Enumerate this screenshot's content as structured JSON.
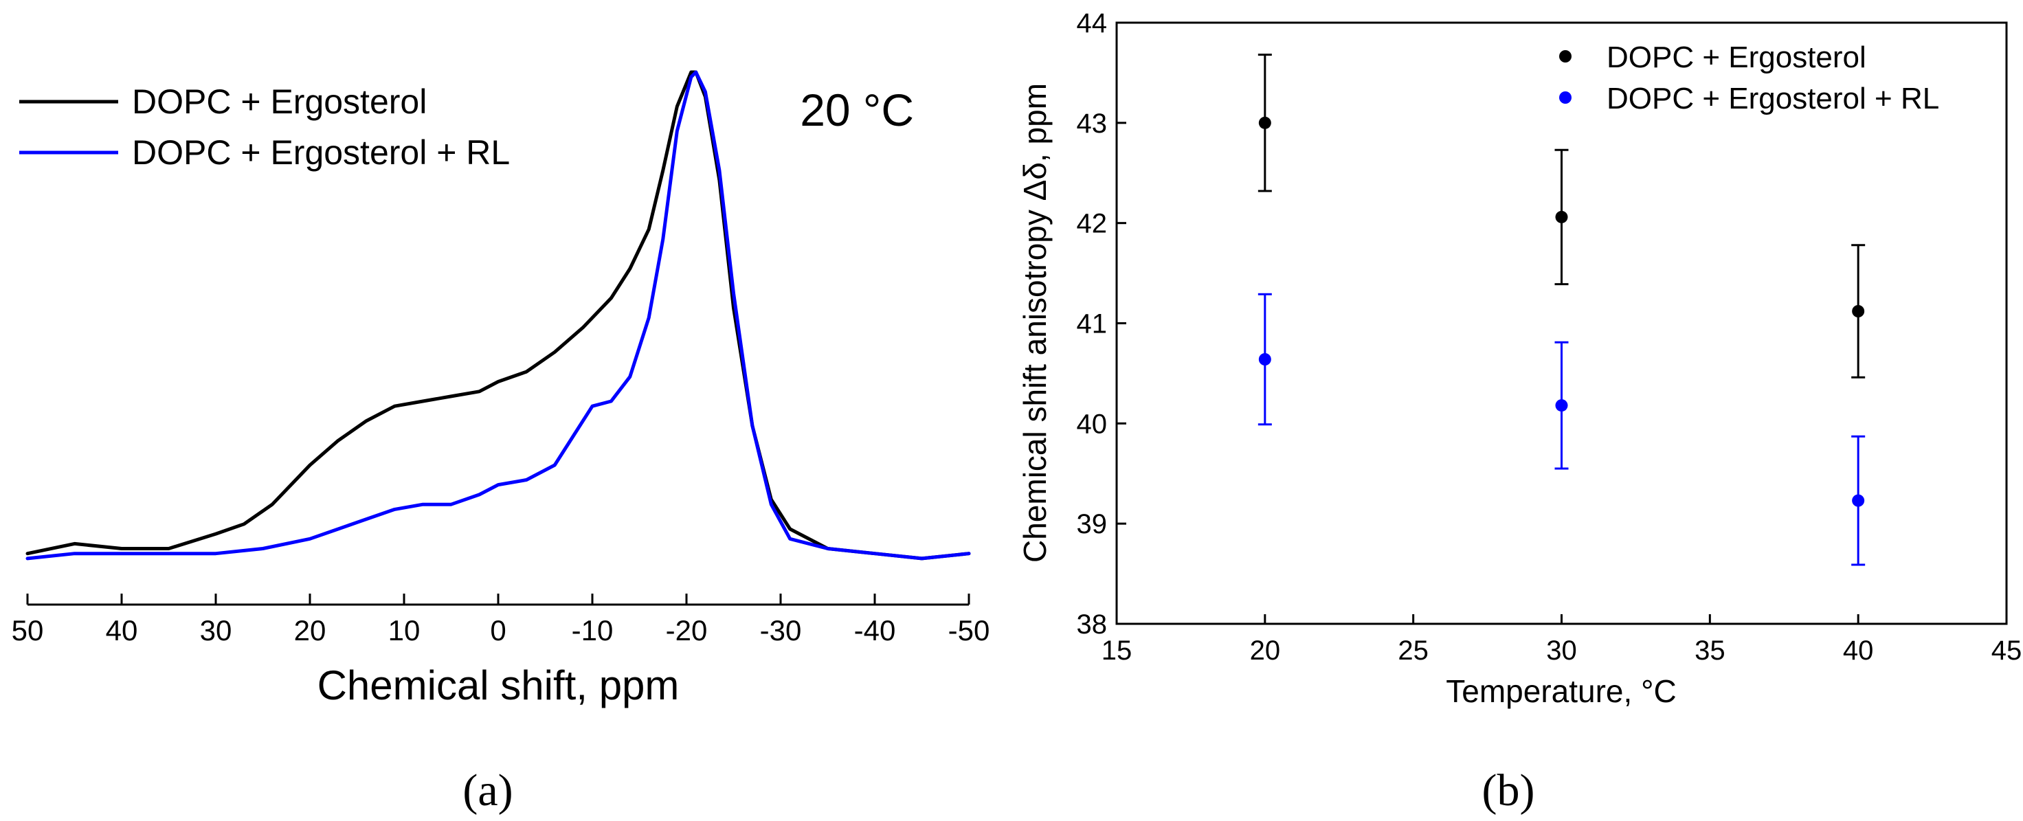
{
  "chart_data": [
    {
      "panel_label": "(a)",
      "type": "line",
      "title": "",
      "xlabel": "Chemical shift, ppm",
      "ylabel": "",
      "annotation": "20 °C",
      "xlim": [
        50,
        -50
      ],
      "ylim": [
        0,
        1
      ],
      "grid": false,
      "y_ticks_shown": false,
      "legend_position": "top-left",
      "x_ticks": [
        "50",
        "40",
        "30",
        "20",
        "10",
        "0",
        "-10",
        "-20",
        "-30",
        "-40",
        "-50"
      ],
      "x_tick_values": [
        50,
        40,
        30,
        20,
        10,
        0,
        -10,
        -20,
        -30,
        -40,
        -50
      ],
      "series": [
        {
          "name": "DOPC + Ergosterol",
          "color": "#000000",
          "x": [
            50,
            45,
            40,
            35,
            30,
            27,
            24,
            20,
            17,
            14,
            11,
            8,
            5,
            2,
            0,
            -3,
            -6,
            -9,
            -12,
            -14,
            -16,
            -17.5,
            -19,
            -20.5,
            -21,
            -22,
            -23.5,
            -25,
            -27,
            -29,
            -31,
            -35,
            -40,
            -45,
            -50
          ],
          "y": [
            0.02,
            0.04,
            0.03,
            0.03,
            0.06,
            0.08,
            0.12,
            0.2,
            0.25,
            0.29,
            0.32,
            0.33,
            0.34,
            0.35,
            0.37,
            0.39,
            0.43,
            0.48,
            0.54,
            0.6,
            0.68,
            0.8,
            0.93,
            1.0,
            1.0,
            0.95,
            0.78,
            0.52,
            0.28,
            0.13,
            0.07,
            0.03,
            0.02,
            0.01,
            0.02
          ]
        },
        {
          "name": "DOPC + Ergosterol + RL",
          "color": "#0000ff",
          "x": [
            50,
            45,
            40,
            35,
            30,
            25,
            20,
            17,
            14,
            11,
            8,
            5,
            2,
            0,
            -3,
            -6,
            -8,
            -10,
            -12,
            -14,
            -16,
            -17.5,
            -19,
            -20.5,
            -21,
            -22,
            -23.5,
            -25,
            -27,
            -29,
            -31,
            -35,
            -40,
            -45,
            -50
          ],
          "y": [
            0.01,
            0.02,
            0.02,
            0.02,
            0.02,
            0.03,
            0.05,
            0.07,
            0.09,
            0.11,
            0.12,
            0.12,
            0.14,
            0.16,
            0.17,
            0.2,
            0.26,
            0.32,
            0.33,
            0.38,
            0.5,
            0.66,
            0.88,
            0.99,
            1.0,
            0.96,
            0.8,
            0.55,
            0.28,
            0.12,
            0.05,
            0.03,
            0.02,
            0.01,
            0.02
          ]
        }
      ]
    },
    {
      "panel_label": "(b)",
      "type": "scatter",
      "title": "",
      "xlabel": "Temperature, °C",
      "ylabel": "Chemical shift anisotropy Δδ, ppm",
      "xlim": [
        15,
        45
      ],
      "ylim": [
        38,
        44
      ],
      "grid": false,
      "legend_position": "top-right",
      "x_ticks": [
        "15",
        "20",
        "25",
        "30",
        "35",
        "40",
        "45"
      ],
      "x_tick_values": [
        15,
        20,
        25,
        30,
        35,
        40,
        45
      ],
      "y_ticks": [
        "38",
        "39",
        "40",
        "41",
        "42",
        "43",
        "44"
      ],
      "y_tick_values": [
        38,
        39,
        40,
        41,
        42,
        43,
        44
      ],
      "series": [
        {
          "name": "DOPC + Ergosterol",
          "color": "#000000",
          "x": [
            20,
            30,
            40
          ],
          "y": [
            43.0,
            42.06,
            41.12
          ],
          "error": [
            0.68,
            0.67,
            0.66
          ]
        },
        {
          "name": "DOPC + Ergosterol + RL",
          "color": "#0000ff",
          "x": [
            20,
            30,
            40
          ],
          "y": [
            40.64,
            40.18,
            39.23
          ],
          "error": [
            0.65,
            0.63,
            0.64
          ]
        }
      ]
    }
  ]
}
